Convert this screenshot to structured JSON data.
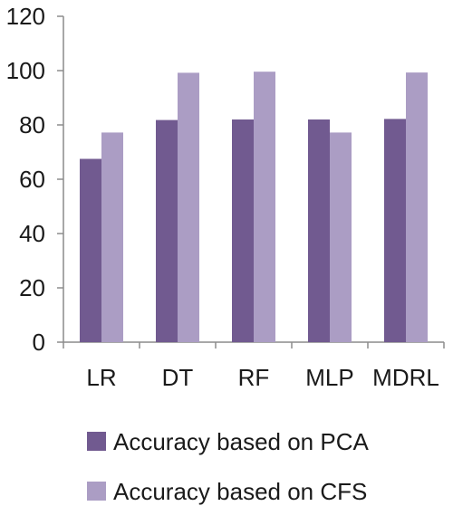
{
  "chart_data": {
    "type": "bar",
    "categories": [
      "LR",
      "DT",
      "RF",
      "MLP",
      "MDRL"
    ],
    "series": [
      {
        "name": "Accuracy based on PCA",
        "values": [
          67.5,
          81.8,
          82.0,
          82.0,
          82.2
        ],
        "color": "#715a90"
      },
      {
        "name": "Accuracy based on CFS",
        "values": [
          77.2,
          99.2,
          99.6,
          77.2,
          99.3
        ],
        "color": "#ab9dc4"
      }
    ],
    "yticks": [
      "0",
      "20",
      "40",
      "60",
      "80",
      "100",
      "120"
    ],
    "ylim": [
      0,
      120
    ],
    "title": "",
    "xlabel": "",
    "ylabel": "",
    "grid": false,
    "legend": "bottom"
  }
}
